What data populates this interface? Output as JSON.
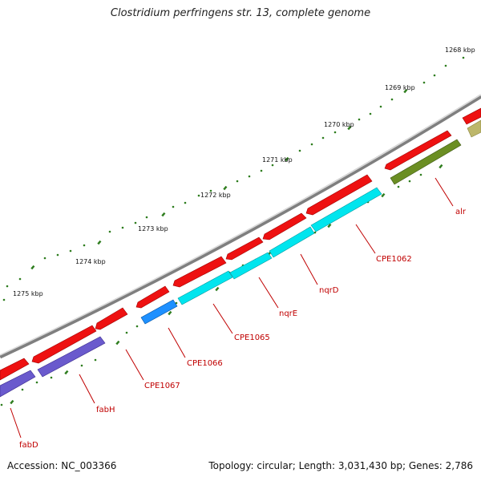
{
  "title": "Clostridium perfringens str. 13, complete genome",
  "footer": {
    "accession": "Accession: NC_003366",
    "summary": "Topology: circular; Length: 3,031,430 bp; Genes: 2,786"
  },
  "colors": {
    "backbone": "#8c8c8c",
    "tick": "#2e7d1e",
    "gene_red": "#ee1111",
    "gene_purple": "#6a5acd",
    "gene_cyan": "#00e5ee",
    "gene_blue": "#1e90ff",
    "gene_olive": "#6b8e23",
    "gene_khaki": "#bdb76b",
    "label": "#c00000"
  },
  "kbp_labels": [
    "1268 kbp",
    "1269 kbp",
    "1270 kbp",
    "1271 kbp",
    "1272 kbp",
    "1273 kbp",
    "1274 kbp",
    "1275 kbp"
  ],
  "gene_labels": [
    "alr",
    "CPE1062",
    "nqrD",
    "nqrE",
    "CPE1065",
    "CPE1066",
    "CPE1067",
    "fabH",
    "fabD"
  ]
}
